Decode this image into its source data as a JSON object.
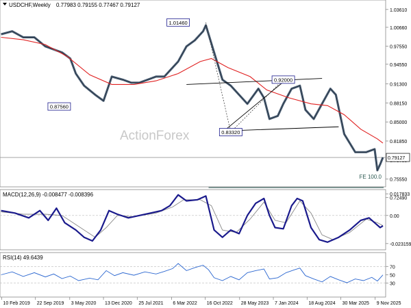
{
  "chart_data": {
    "type": "line",
    "title": "USDCHF,Weekly",
    "ohlc": "0.77983 0.79155 0.77467 0.79127",
    "watermark": "ActionForex",
    "colors": {
      "price": "#3a4f66",
      "ma": "#e02020",
      "macd": "#1a1a8c",
      "signal": "#888888",
      "rsi": "#2a66d0",
      "trendline": "#000000",
      "fe_line": "#2e5b54",
      "label_box": "#1a1a8c"
    },
    "price_panel": {
      "ylim": [
        0.7449,
        1.0495
      ],
      "y_ticks": [
        "1.03610",
        "1.00660",
        "0.97550",
        "0.94550",
        "0.91300",
        "0.88150",
        "0.85000",
        "0.81850",
        "0.78700",
        "0.75550",
        "0.72490"
      ],
      "current_price_label": "0.79127",
      "fe_label": "FE 100.0",
      "fe_level": 0.7415,
      "annotations": [
        {
          "text": "1.01460",
          "x": 2022.3,
          "y": 1.0146
        },
        {
          "text": "0.87560",
          "x": 2020.15,
          "y": 0.8756
        },
        {
          "text": "0.83320",
          "x": 2023.25,
          "y": 0.8332
        },
        {
          "text": "0.92000",
          "x": 2024.2,
          "y": 0.92
        }
      ],
      "price_series": [
        [
          2019.1,
          0.995
        ],
        [
          2019.3,
          1.0
        ],
        [
          2019.5,
          0.99
        ],
        [
          2019.7,
          0.99
        ],
        [
          2019.9,
          0.975
        ],
        [
          2020.05,
          0.97
        ],
        [
          2020.2,
          0.965
        ],
        [
          2020.35,
          0.955
        ],
        [
          2020.45,
          0.93
        ],
        [
          2020.6,
          0.91
        ],
        [
          2020.8,
          0.895
        ],
        [
          2020.95,
          0.885
        ],
        [
          2021.1,
          0.925
        ],
        [
          2021.3,
          0.92
        ],
        [
          2021.45,
          0.915
        ],
        [
          2021.6,
          0.915
        ],
        [
          2021.75,
          0.92
        ],
        [
          2021.9,
          0.925
        ],
        [
          2022.05,
          0.925
        ],
        [
          2022.15,
          0.935
        ],
        [
          2022.3,
          0.95
        ],
        [
          2022.45,
          0.975
        ],
        [
          2022.6,
          0.985
        ],
        [
          2022.75,
          1.0
        ],
        [
          2022.8,
          1.01
        ],
        [
          2022.95,
          0.965
        ],
        [
          2023.1,
          0.92
        ],
        [
          2023.25,
          0.91
        ],
        [
          2023.4,
          0.895
        ],
        [
          2023.55,
          0.88
        ],
        [
          2023.75,
          0.905
        ],
        [
          2023.85,
          0.89
        ],
        [
          2023.95,
          0.855
        ],
        [
          2024.1,
          0.86
        ],
        [
          2024.2,
          0.88
        ],
        [
          2024.35,
          0.905
        ],
        [
          2024.5,
          0.91
        ],
        [
          2024.6,
          0.87
        ],
        [
          2024.75,
          0.855
        ],
        [
          2024.9,
          0.88
        ],
        [
          2025.05,
          0.905
        ],
        [
          2025.15,
          0.895
        ],
        [
          2025.3,
          0.83
        ],
        [
          2025.5,
          0.8
        ],
        [
          2025.7,
          0.8
        ],
        [
          2025.85,
          0.805
        ],
        [
          2025.9,
          0.77
        ],
        [
          2025.95,
          0.78
        ],
        [
          2026.0,
          0.7913
        ]
      ],
      "ma_series": [
        [
          2019.1,
          0.99
        ],
        [
          2019.5,
          0.986
        ],
        [
          2019.9,
          0.978
        ],
        [
          2020.3,
          0.958
        ],
        [
          2020.7,
          0.928
        ],
        [
          2021.1,
          0.912
        ],
        [
          2021.5,
          0.912
        ],
        [
          2021.9,
          0.918
        ],
        [
          2022.3,
          0.93
        ],
        [
          2022.7,
          0.95
        ],
        [
          2022.9,
          0.955
        ],
        [
          2023.2,
          0.94
        ],
        [
          2023.6,
          0.925
        ],
        [
          2023.9,
          0.903
        ],
        [
          2024.3,
          0.89
        ],
        [
          2024.7,
          0.88
        ],
        [
          2025.0,
          0.877
        ],
        [
          2025.3,
          0.862
        ],
        [
          2025.6,
          0.838
        ],
        [
          2025.9,
          0.822
        ],
        [
          2026.0,
          0.815
        ]
      ],
      "trendlines": [
        [
          [
            2022.45,
            0.912
          ],
          [
            2024.9,
            0.922
          ]
        ],
        [
          [
            2023.4,
            0.836
          ],
          [
            2025.2,
            0.842
          ]
        ],
        [
          [
            2023.1,
            0.833
          ],
          [
            2024.25,
            0.92
          ]
        ]
      ],
      "fib_lines": [
        [
          [
            2022.8,
            1.0146
          ],
          [
            2023.25,
            0.8332
          ]
        ],
        [
          [
            2023.25,
            0.8332
          ],
          [
            2024.2,
            0.92
          ]
        ]
      ]
    },
    "macd_panel": {
      "label": "MACD(12,26,9) -0.008477 -0.008396",
      "ylim": [
        -0.0272,
        0.0202
      ],
      "y_ticks": [
        "0.017833",
        "0.00",
        "-0.023159"
      ],
      "macd_series": [
        [
          2019.1,
          0.004
        ],
        [
          2019.35,
          0.002
        ],
        [
          2019.6,
          -0.002
        ],
        [
          2019.8,
          0.004
        ],
        [
          2019.95,
          -0.004
        ],
        [
          2020.1,
          0.006
        ],
        [
          2020.25,
          -0.006
        ],
        [
          2020.45,
          -0.012
        ],
        [
          2020.6,
          -0.018
        ],
        [
          2020.75,
          -0.021
        ],
        [
          2020.9,
          -0.012
        ],
        [
          2021.05,
          0.004
        ],
        [
          2021.2,
          0.001
        ],
        [
          2021.4,
          -0.002
        ],
        [
          2021.6,
          0.0
        ],
        [
          2021.8,
          0.002
        ],
        [
          2022.0,
          0.004
        ],
        [
          2022.15,
          0.008
        ],
        [
          2022.3,
          0.017
        ],
        [
          2022.45,
          0.012
        ],
        [
          2022.65,
          0.013
        ],
        [
          2022.8,
          0.016
        ],
        [
          2022.95,
          -0.012
        ],
        [
          2023.1,
          -0.018
        ],
        [
          2023.25,
          -0.012
        ],
        [
          2023.4,
          -0.015
        ],
        [
          2023.55,
          0.0
        ],
        [
          2023.7,
          0.01
        ],
        [
          2023.85,
          0.014
        ],
        [
          2023.95,
          0.0
        ],
        [
          2024.05,
          -0.01
        ],
        [
          2024.2,
          -0.011
        ],
        [
          2024.35,
          0.008
        ],
        [
          2024.45,
          0.014
        ],
        [
          2024.55,
          0.012
        ],
        [
          2024.7,
          -0.01
        ],
        [
          2024.85,
          -0.02
        ],
        [
          2025.0,
          -0.022
        ],
        [
          2025.2,
          -0.018
        ],
        [
          2025.4,
          -0.012
        ],
        [
          2025.6,
          -0.004
        ],
        [
          2025.75,
          -0.002
        ],
        [
          2025.85,
          -0.006
        ],
        [
          2025.95,
          -0.01
        ],
        [
          2026.0,
          -0.0085
        ]
      ],
      "signal_series": [
        [
          2019.1,
          0.003
        ],
        [
          2019.5,
          0.001
        ],
        [
          2019.9,
          0.001
        ],
        [
          2020.2,
          0.0
        ],
        [
          2020.5,
          -0.009
        ],
        [
          2020.8,
          -0.018
        ],
        [
          2021.0,
          -0.01
        ],
        [
          2021.2,
          0.0
        ],
        [
          2021.5,
          -0.001
        ],
        [
          2021.9,
          0.002
        ],
        [
          2022.2,
          0.007
        ],
        [
          2022.4,
          0.013
        ],
        [
          2022.7,
          0.013
        ],
        [
          2022.9,
          0.008
        ],
        [
          2023.1,
          -0.012
        ],
        [
          2023.35,
          -0.014
        ],
        [
          2023.6,
          -0.003
        ],
        [
          2023.85,
          0.011
        ],
        [
          2024.05,
          -0.004
        ],
        [
          2024.25,
          -0.006
        ],
        [
          2024.5,
          0.012
        ],
        [
          2024.7,
          0.002
        ],
        [
          2024.9,
          -0.016
        ],
        [
          2025.1,
          -0.02
        ],
        [
          2025.4,
          -0.014
        ],
        [
          2025.7,
          -0.003
        ],
        [
          2025.9,
          -0.006
        ],
        [
          2026.0,
          -0.0084
        ]
      ]
    },
    "rsi_panel": {
      "label": "RSI(14) 49.6439",
      "ylim": [
        0,
        100
      ],
      "y_ticks": [
        "70",
        "50",
        "30"
      ],
      "rsi_series": [
        [
          2019.1,
          50
        ],
        [
          2019.3,
          57
        ],
        [
          2019.5,
          46
        ],
        [
          2019.7,
          55
        ],
        [
          2019.9,
          45
        ],
        [
          2020.05,
          52
        ],
        [
          2020.2,
          41
        ],
        [
          2020.35,
          47
        ],
        [
          2020.5,
          36
        ],
        [
          2020.7,
          42
        ],
        [
          2020.85,
          38
        ],
        [
          2021.0,
          60
        ],
        [
          2021.15,
          48
        ],
        [
          2021.3,
          55
        ],
        [
          2021.5,
          49
        ],
        [
          2021.7,
          57
        ],
        [
          2021.9,
          52
        ],
        [
          2022.05,
          58
        ],
        [
          2022.2,
          65
        ],
        [
          2022.3,
          77
        ],
        [
          2022.45,
          60
        ],
        [
          2022.6,
          67
        ],
        [
          2022.75,
          73
        ],
        [
          2022.85,
          62
        ],
        [
          2022.95,
          43
        ],
        [
          2023.1,
          36
        ],
        [
          2023.25,
          46
        ],
        [
          2023.4,
          38
        ],
        [
          2023.55,
          55
        ],
        [
          2023.7,
          60
        ],
        [
          2023.85,
          64
        ],
        [
          2023.95,
          40
        ],
        [
          2024.1,
          43
        ],
        [
          2024.25,
          55
        ],
        [
          2024.4,
          62
        ],
        [
          2024.5,
          66
        ],
        [
          2024.6,
          48
        ],
        [
          2024.75,
          40
        ],
        [
          2024.9,
          33
        ],
        [
          2025.05,
          46
        ],
        [
          2025.2,
          38
        ],
        [
          2025.35,
          31
        ],
        [
          2025.5,
          40
        ],
        [
          2025.65,
          36
        ],
        [
          2025.8,
          44
        ],
        [
          2025.9,
          35
        ],
        [
          2026.0,
          49.6
        ]
      ]
    },
    "x_axis": {
      "xlim": [
        2019.08,
        2026.0
      ],
      "ticks": [
        {
          "label": "10 Feb 2019",
          "x": 2019.11
        },
        {
          "label": "22 Sep 2019",
          "x": 2019.72
        },
        {
          "label": "3 May 2020",
          "x": 2020.34
        },
        {
          "label": "13 Dec 2020",
          "x": 2020.95
        },
        {
          "label": "25 Jul 2021",
          "x": 2021.56
        },
        {
          "label": "6 Mar 2022",
          "x": 2022.18
        },
        {
          "label": "16 Oct 2022",
          "x": 2022.79
        },
        {
          "label": "28 May 2023",
          "x": 2023.41
        },
        {
          "label": "7 Jan 2024",
          "x": 2024.02
        },
        {
          "label": "18 Aug 2024",
          "x": 2024.63
        },
        {
          "label": "30 Mar 2025",
          "x": 2025.24
        },
        {
          "label": "9 Nov 2025",
          "x": 2025.86
        }
      ]
    }
  }
}
